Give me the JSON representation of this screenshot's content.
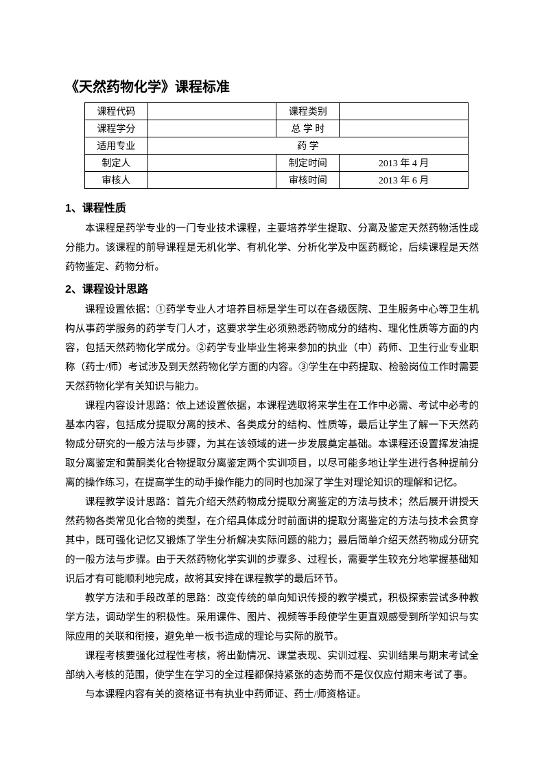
{
  "title": "《天然药物化学》课程标准",
  "table": {
    "rows": [
      {
        "k1": "课程代码",
        "v1": "",
        "k2": "课程类别",
        "v2": ""
      },
      {
        "k1": "课程学分",
        "v1": "",
        "k2": "总 学 时",
        "v2": ""
      },
      {
        "k1": "适用专业",
        "span": "药 学"
      },
      {
        "k1": "制定人",
        "v1": "",
        "k2": "制定时间",
        "v2": "2013 年 4 月"
      },
      {
        "k1": "审核人",
        "v1": "",
        "k2": "审核时间",
        "v2": "2013 年 6 月"
      }
    ]
  },
  "sections": {
    "s1_title": "1、课程性质",
    "s1_p1": "本课程是药学专业的一门专业技术课程，主要培养学生提取、分离及鉴定天然药物活性成分能力。该课程的前导课程是无机化学、有机化学、分析化学及中医药概论，后续课程是天然药物鉴定、药物分析。",
    "s2_title": "2、课程设计思路",
    "s2_p1": "课程设置依据：①药学专业人才培养目标是学生可以在各级医院、卫生服务中心等卫生机构从事药学服务的药学专门人才，这要求学生必须熟悉药物成分的结构、理化性质等方面的内容，包括天然药物化学成分。②药学专业毕业生将来参加的执业（中）药师、卫生行业专业职称（药士/师）考试涉及到天然药物化学方面的内容。③学生在中药提取、检验岗位工作时需要天然药物化学有关知识与能力。",
    "s2_p2": "课程内容设计思路：依上述设置依据，本课程选取将来学生在工作中必需、考试中必考的基本内容，包括成分提取分离的技术、各类成分的结构、性质等，最后让学生了解一下天然药物成分研究的一般方法与步骤，为其在该领域的进一步发展奠定基础。本课程还设置挥发油提取分离鉴定和黄酮类化合物提取分离鉴定两个实训项目，以尽可能多地让学生进行各种提前分离的操作练习，在提高学生的动手操作能力的同时也加深了学生对理论知识的理解和记忆。",
    "s2_p3": "课程教学设计思路：首先介绍天然药物成分提取分离鉴定的方法与技术；然后展开讲授天然药物各类常见化合物的类型，在介绍具体成分时前面讲的提取分离鉴定的方法与技术会贯穿其中，既可强化记忆又锻炼了学生分析解决实际问题的能力；最后简单介绍天然药物成分研究的一般方法与步骤。由于天然药物化学实训的步骤多、过程长，需要学生较充分地掌握基础知识后才有可能顺利地完成，故将其安排在课程教学的最后环节。",
    "s2_p4": "教学方法和手段改革的思路：改变传统的单向知识传授的教学模式，积极探索尝试多种教学方法，调动学生的积极性。采用课件、图片、视频等手段使学生更直观感受到所学知识与实际应用的关联和衔接，避免单一板书造成的理论与实际的脱节。",
    "s2_p5": "课程考核要强化过程性考核，将出勤情况、课堂表现、实训过程、实训结果与期末考试全部纳入考核的范围，使学生在学习的全过程都保持紧张的态势而不是仅仅应付期末考试了事。",
    "s2_p6": "与本课程内容有关的资格证书有执业中药师证、药士/师资格证。"
  }
}
